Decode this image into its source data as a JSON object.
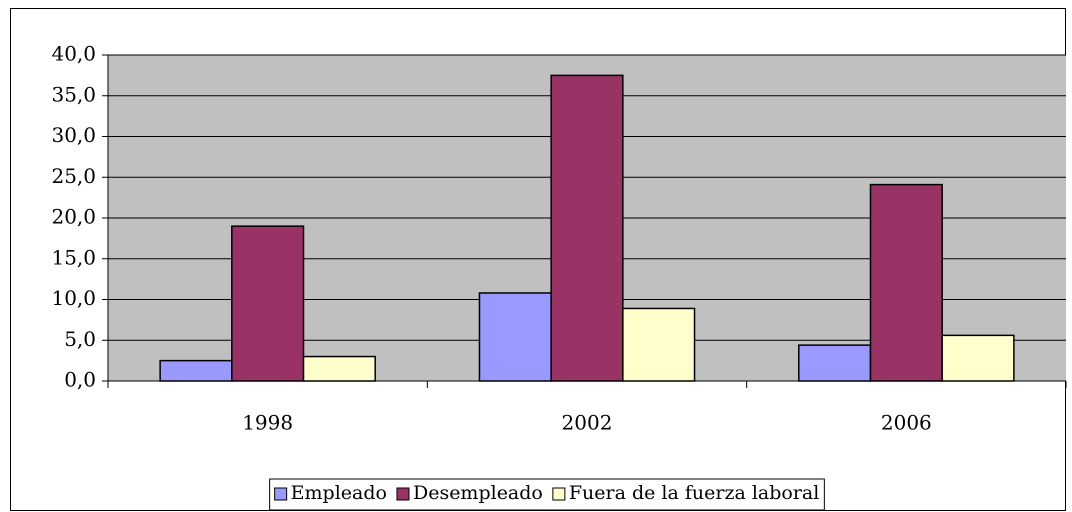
{
  "chart_data": {
    "type": "bar",
    "categories": [
      "1998",
      "2002",
      "2006"
    ],
    "series": [
      {
        "name": "Empleado",
        "color": "#9999ff",
        "values": [
          2.5,
          10.8,
          4.4
        ]
      },
      {
        "name": "Desempleado",
        "color": "#993366",
        "values": [
          19.0,
          37.5,
          24.1
        ]
      },
      {
        "name": "Fuera de la fuerza laboral",
        "color": "#ffffcc",
        "values": [
          3.0,
          8.9,
          5.6
        ]
      }
    ],
    "ylim": [
      0,
      40
    ],
    "yticks": [
      {
        "value": 0,
        "label": "0,0"
      },
      {
        "value": 5,
        "label": "5,0"
      },
      {
        "value": 10,
        "label": "10,0"
      },
      {
        "value": 15,
        "label": "15,0"
      },
      {
        "value": 20,
        "label": "20,0"
      },
      {
        "value": 25,
        "label": "25,0"
      },
      {
        "value": 30,
        "label": "30,0"
      },
      {
        "value": 35,
        "label": "35,0"
      },
      {
        "value": 40,
        "label": "40,0"
      }
    ],
    "grid": true,
    "plot_background": "#c0c0c0",
    "legend": "bottom"
  }
}
